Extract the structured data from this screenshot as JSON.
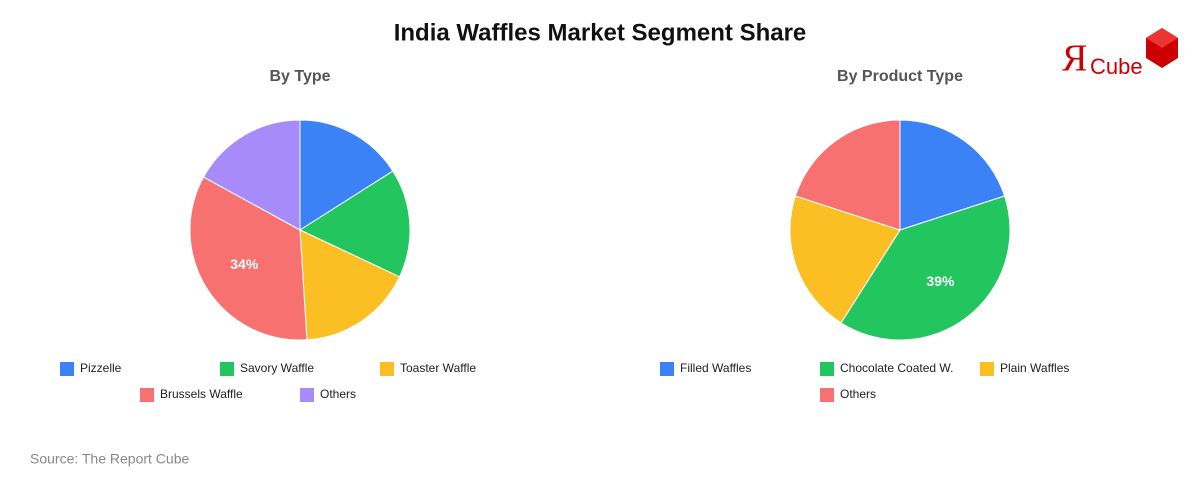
{
  "title": "India Waffles Market Segment Share",
  "logo": {
    "mark": "Я",
    "text": "Cube"
  },
  "source": "Source: The Report Cube",
  "chart_data": [
    {
      "type": "pie",
      "title": "By Type",
      "categories": [
        "Pizzelle",
        "Savory Waffle",
        "Toaster Waffle",
        "Brussels Waffle",
        "Others"
      ],
      "values": [
        16,
        16,
        17,
        34,
        17
      ],
      "value_labels": [
        null,
        null,
        null,
        "34%",
        null
      ],
      "colors": [
        "#3b82f6",
        "#22c55e",
        "#fbbf24",
        "#f87171",
        "#a78bfa"
      ]
    },
    {
      "type": "pie",
      "title": "By Product Type",
      "categories": [
        "Filled Waffles",
        "Chocolate Coated W.",
        "Plain Waffles",
        "Others"
      ],
      "values": [
        20,
        39,
        21,
        20
      ],
      "value_labels": [
        null,
        "39%",
        null,
        null
      ],
      "colors": [
        "#3b82f6",
        "#22c55e",
        "#fbbf24",
        "#f87171"
      ]
    }
  ]
}
